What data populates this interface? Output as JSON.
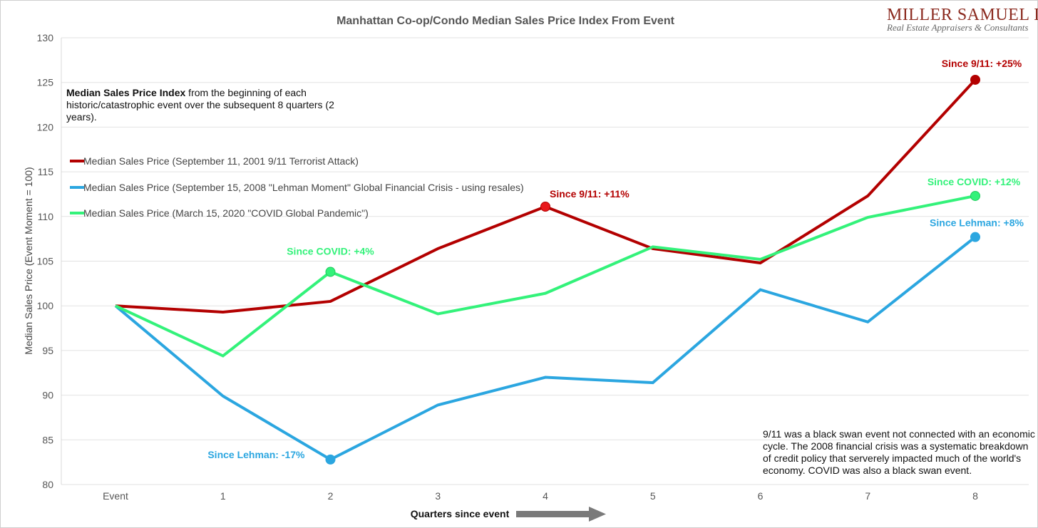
{
  "logo": {
    "name": "MILLER SAMUEL INC.",
    "tagline": "Real Estate Appraisers & Consultants"
  },
  "intro_note": {
    "bold": "Median Sales Price Index",
    "rest": " from the beginning of each historic/catastrophic event over the subsequent 8 quarters (2 years)."
  },
  "footer_note": "9/11 was a black swan event not connected with an economic cycle.  The 2008 financial crisis was a systematic breakdown of credit policy that serverely impacted much of the world's economy. COVID was also a black swan event.",
  "chart_data": {
    "type": "line",
    "title": "Manhattan Co-op/Condo Median Sales Price Index From Event",
    "xlabel": "Quarters since event",
    "ylabel": "Median Sales Price (Event Moment = 100)",
    "categories": [
      "Event",
      "1",
      "2",
      "3",
      "4",
      "5",
      "6",
      "7",
      "8"
    ],
    "ylim": [
      80,
      130
    ],
    "yticks": [
      80,
      85,
      90,
      95,
      100,
      105,
      110,
      115,
      120,
      125,
      130
    ],
    "grid": true,
    "legend_position": "top-left",
    "series": [
      {
        "name": "Median Sales Price (September 11, 2001 9/11 Terrorist Attack)",
        "color": "#b30000",
        "values": [
          100,
          99.3,
          100.5,
          106.4,
          111.1,
          106.4,
          104.8,
          112.3,
          125.3
        ]
      },
      {
        "name": "Median Sales Price (September 15, 2008 \"Lehman Moment\" Global Financial Crisis - using resales)",
        "color": "#2ba6e0",
        "values": [
          100,
          89.9,
          82.8,
          88.9,
          92.0,
          91.4,
          101.8,
          98.2,
          107.7
        ]
      },
      {
        "name": "Median Sales Price (March 15, 2020 \"COVID Global Pandemic\")",
        "color": "#33f27a",
        "values": [
          100,
          94.4,
          103.8,
          99.1,
          101.4,
          106.6,
          105.2,
          109.9,
          112.3
        ]
      }
    ],
    "annotations": [
      {
        "series": 0,
        "index": 4,
        "text": "Since 9/11: +11%",
        "color": "#b30000",
        "position": "above-right"
      },
      {
        "series": 0,
        "index": 8,
        "text": "Since 9/11: +25%",
        "color": "#b30000",
        "position": "above"
      },
      {
        "series": 1,
        "index": 2,
        "text": "Since Lehman: -17%",
        "color": "#2ba6e0",
        "position": "left"
      },
      {
        "series": 1,
        "index": 8,
        "text": "Since Lehman: +8%",
        "color": "#2ba6e0",
        "position": "above"
      },
      {
        "series": 2,
        "index": 2,
        "text": "Since COVID: +4%",
        "color": "#33f27a",
        "position": "above"
      },
      {
        "series": 2,
        "index": 8,
        "text": "Since COVID: +12%",
        "color": "#33f27a",
        "position": "above"
      }
    ]
  }
}
